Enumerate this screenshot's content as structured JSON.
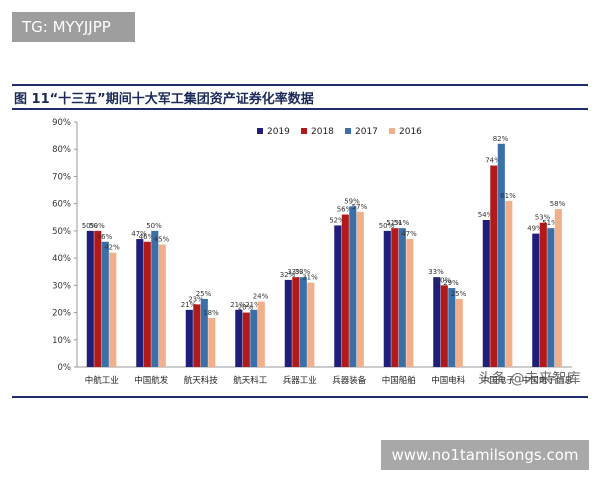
{
  "header": {
    "tag": "TG: MYYJJPP"
  },
  "figure": {
    "title": "图 11“十三五”期间十大军工集团资产证券化率数据"
  },
  "watermark": "头条 @未来智库",
  "footer": {
    "url": "www.no1tamilsongs.com"
  },
  "colors": {
    "2019": "#1f1f7a",
    "2018": "#b01a1a",
    "2017": "#3a6fa8",
    "2016": "#f2b08a",
    "rule": "#1f2d6b"
  },
  "chart_data": {
    "type": "bar",
    "ylim": [
      0,
      90
    ],
    "yticks": [
      "0%",
      "10%",
      "20%",
      "30%",
      "40%",
      "50%",
      "60%",
      "70%",
      "80%",
      "90%"
    ],
    "legend_position": "top",
    "grid": false,
    "categories": [
      "中航工业",
      "中国航发",
      "航天科技",
      "航天科工",
      "兵器工业",
      "兵器装备",
      "中国船舶",
      "中国电科",
      "中国电子",
      "中国电子信息"
    ],
    "series": [
      {
        "name": "2019",
        "values": [
          50,
          47,
          21,
          21,
          32,
          52,
          50,
          33,
          54,
          49
        ]
      },
      {
        "name": "2018",
        "values": [
          50,
          46,
          23,
          20,
          33,
          56,
          51,
          30,
          74,
          53
        ]
      },
      {
        "name": "2017",
        "values": [
          46,
          50,
          25,
          21,
          33,
          59,
          51,
          29,
          82,
          51
        ]
      },
      {
        "name": "2016",
        "values": [
          42,
          45,
          18,
          24,
          31,
          57,
          47,
          25,
          61,
          58
        ]
      }
    ],
    "data_labels": [
      [
        "50%",
        "50%",
        "46%",
        "42%"
      ],
      [
        "47%",
        "46%",
        "50%",
        "45%"
      ],
      [
        "21%",
        "23%",
        "25%",
        "18%"
      ],
      [
        "21%",
        "20%",
        "21%",
        "24%"
      ],
      [
        "32%",
        "33%",
        "33%",
        "31%"
      ],
      [
        "52%",
        "56%",
        "59%",
        "57%"
      ],
      [
        "50%",
        "51%",
        "51%",
        "47%"
      ],
      [
        "33%",
        "30%",
        "29%",
        "25%"
      ],
      [
        "54%",
        "74%",
        "82%",
        "61%"
      ],
      [
        "49%",
        "53%",
        "51%",
        "58%"
      ]
    ]
  }
}
